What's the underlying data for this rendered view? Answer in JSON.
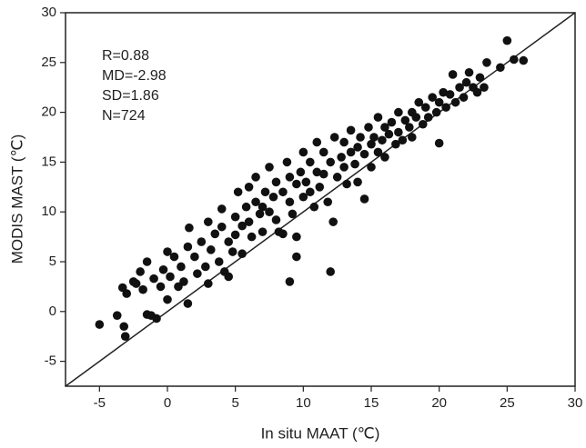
{
  "chart_data": {
    "type": "scatter",
    "xlabel": "In situ MAAT (℃)",
    "ylabel": "MODIS MAST (℃)",
    "annotations": [
      "R=0.88",
      "MD=-2.98",
      "SD=1.86",
      "N=724"
    ],
    "xlim": [
      -7.5,
      30
    ],
    "ylim": [
      -7.5,
      30
    ],
    "xticks": [
      -5,
      0,
      5,
      10,
      15,
      20,
      25,
      30
    ],
    "yticks": [
      -5,
      0,
      5,
      10,
      15,
      20,
      25,
      30
    ],
    "color": "#111111",
    "grid": false,
    "x": [
      -5,
      -3.7,
      -3.2,
      -3.1,
      -3.3,
      -3,
      -2.5,
      -2.3,
      -2,
      -1.8,
      -1.5,
      -1.5,
      -1.2,
      -1,
      -0.8,
      -0.5,
      -0.3,
      0,
      0,
      0.2,
      0.5,
      0.8,
      1,
      1.2,
      1.5,
      1.5,
      1.6,
      2,
      2.2,
      2.5,
      2.8,
      3,
      3,
      3.2,
      3.5,
      3.8,
      4,
      4,
      4.2,
      4.5,
      4.5,
      4.8,
      5,
      5,
      5.2,
      5.5,
      5.5,
      5.8,
      6,
      6,
      6.2,
      6.5,
      6.5,
      6.8,
      7,
      7,
      7.2,
      7.5,
      7.5,
      7.8,
      8,
      8,
      8.2,
      8.5,
      8.5,
      8.8,
      9,
      9,
      9,
      9.2,
      9.5,
      9.5,
      9.5,
      9.8,
      10,
      10,
      10.2,
      10.5,
      10.5,
      10.8,
      11,
      11,
      11.2,
      11.5,
      11.5,
      11.8,
      12,
      12,
      12.2,
      12.3,
      12.5,
      12.8,
      13,
      13,
      13.2,
      13.5,
      13.5,
      13.8,
      14,
      14,
      14.2,
      14.5,
      14.5,
      14.8,
      15,
      15,
      15.2,
      15.5,
      15.5,
      15.8,
      16,
      16,
      16.3,
      16.5,
      16.8,
      17,
      17,
      17.3,
      17.5,
      17.8,
      18,
      18,
      18.3,
      18.5,
      18.8,
      19,
      19.2,
      19.5,
      19.8,
      20,
      20,
      20.3,
      20.5,
      20.8,
      21,
      21.2,
      21.5,
      21.8,
      22,
      22.2,
      22.5,
      22.8,
      23,
      23.5,
      23.3,
      25,
      25.5,
      26.2,
      24.5
    ],
    "values": [
      -1.3,
      -0.4,
      -1.5,
      -2.5,
      2.4,
      1.8,
      3,
      2.8,
      4,
      2.2,
      5,
      -0.3,
      -0.4,
      3.3,
      -0.7,
      2.5,
      4.2,
      6,
      1.2,
      3.5,
      5.5,
      2.5,
      4.5,
      3,
      0.8,
      6.5,
      8.4,
      5.5,
      3.8,
      7,
      4.5,
      9,
      2.8,
      6.2,
      7.8,
      5,
      10.3,
      8.5,
      4,
      7,
      3.5,
      6,
      9.5,
      7.7,
      12,
      8.6,
      5.8,
      10.5,
      9,
      12.5,
      7.5,
      11,
      13.5,
      9.8,
      10.5,
      8,
      12,
      14.5,
      10,
      11.5,
      9.2,
      13,
      8,
      12,
      7.8,
      15,
      11,
      13.5,
      3,
      9.8,
      7.5,
      5.5,
      12.8,
      14,
      11.5,
      16,
      13,
      12,
      15,
      10.5,
      14,
      17,
      12.5,
      13.8,
      16,
      11,
      15,
      4,
      9,
      17.5,
      13.5,
      15.5,
      14.5,
      17,
      12.8,
      16,
      18.2,
      14.8,
      16.5,
      13,
      17.5,
      11.3,
      15.8,
      18.5,
      16.8,
      14.5,
      17.5,
      19.5,
      16,
      17.2,
      18.5,
      15.5,
      17.8,
      19,
      16.8,
      18,
      20,
      17.2,
      19.2,
      18.5,
      20,
      17.5,
      19.5,
      21,
      18.8,
      20.5,
      19.5,
      21.5,
      20,
      16.9,
      21,
      22,
      20.5,
      21.8,
      23.8,
      21,
      22.5,
      21.5,
      23,
      24,
      22.5,
      22,
      23.5,
      25,
      22.5,
      27.2,
      25.3,
      25.2,
      24.5
    ]
  }
}
